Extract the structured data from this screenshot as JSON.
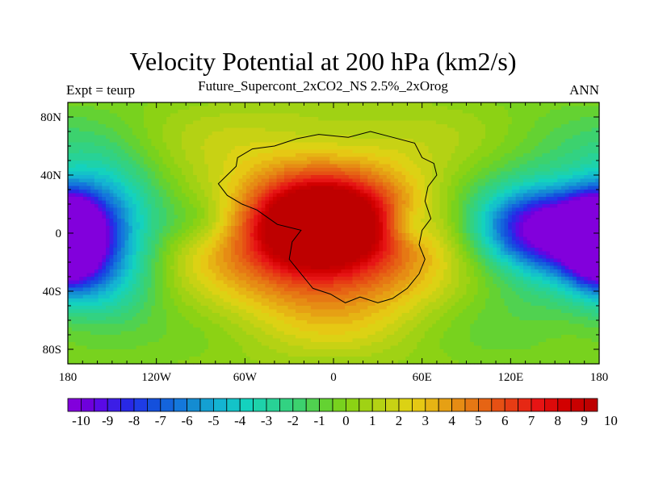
{
  "chart_data": {
    "type": "heatmap",
    "title": "Velocity Potential at 200 hPa (km2/s)",
    "subtitle": "Future_Supercont_2xCO2_NS 2.5%_2xOrog",
    "left_string": "Expt = teurp",
    "right_string": "ANN",
    "x_ticks": [
      "180",
      "120W",
      "60W",
      "0",
      "60E",
      "120E",
      "180"
    ],
    "x_tick_values": [
      -180,
      -120,
      -60,
      0,
      60,
      120,
      180
    ],
    "y_ticks": [
      "80N",
      "40N",
      "0",
      "40S",
      "80S"
    ],
    "y_tick_values": [
      80,
      40,
      0,
      -40,
      -80
    ],
    "xlim": [
      -180,
      180
    ],
    "ylim": [
      -90,
      90
    ],
    "colorbar_labels": [
      "-10",
      "-9",
      "-8",
      "-7",
      "-6",
      "-5",
      "-4",
      "-3",
      "-2",
      "-1",
      "0",
      "1",
      "2",
      "3",
      "4",
      "5",
      "6",
      "7",
      "8",
      "9",
      "10"
    ],
    "colorbar_range": [
      -10,
      10
    ],
    "colorbar_interval": 0.5,
    "colorbar_placement": "bottom",
    "grid": false,
    "field_centers": [
      {
        "lon": -10,
        "lat": 5,
        "value": 8.5,
        "sigma_lon": 28,
        "sigma_lat": 20
      },
      {
        "lon": 0,
        "lat": -8,
        "value": 5.0,
        "sigma_lon": 55,
        "sigma_lat": 35
      },
      {
        "lon": -5,
        "lat": 10,
        "value": 3.0,
        "sigma_lon": 80,
        "sigma_lat": 55
      },
      {
        "lon": 150,
        "lat": 3,
        "value": -9.5,
        "sigma_lon": 32,
        "sigma_lat": 18
      },
      {
        "lon": 150,
        "lat": 0,
        "value": -3.5,
        "sigma_lon": 60,
        "sigma_lat": 40
      },
      {
        "lon": -180,
        "lat": -5,
        "value": -7.0,
        "sigma_lon": 14,
        "sigma_lat": 18
      },
      {
        "lon": 180,
        "lat": -5,
        "value": -7.0,
        "sigma_lon": 14,
        "sigma_lat": 18
      },
      {
        "lon": -155,
        "lat": 20,
        "value": -3.5,
        "sigma_lon": 25,
        "sigma_lat": 25
      },
      {
        "lon": -155,
        "lat": -30,
        "value": -3.0,
        "sigma_lon": 25,
        "sigma_lat": 25
      },
      {
        "lon": 50,
        "lat": 5,
        "value": -2.0,
        "sigma_lon": 12,
        "sigma_lat": 10
      },
      {
        "lon": -90,
        "lat": 8,
        "value": -1.5,
        "sigma_lon": 20,
        "sigma_lat": 12
      }
    ],
    "background_value": 0.3,
    "colors": {
      "colormap": [
        "#8200dc",
        "#6e00dc",
        "#5a0ae6",
        "#3c1ee6",
        "#2828e6",
        "#1e3ce6",
        "#1450dc",
        "#1464dc",
        "#1478dc",
        "#148cd2",
        "#14a0d2",
        "#14b4d2",
        "#14c3c8",
        "#14d2be",
        "#1ed2aa",
        "#28d296",
        "#32d282",
        "#3cd26e",
        "#50d250",
        "#64d232",
        "#78d21e",
        "#8cd214",
        "#a0d214",
        "#b4d214",
        "#c8d214",
        "#dcd214",
        "#e6c814",
        "#e6b414",
        "#e6a014",
        "#e68c14",
        "#e67814",
        "#e66414",
        "#e65014",
        "#e63c14",
        "#e62814",
        "#e61414",
        "#dc0a0a",
        "#d20000",
        "#c80000",
        "#be0000"
      ]
    }
  }
}
